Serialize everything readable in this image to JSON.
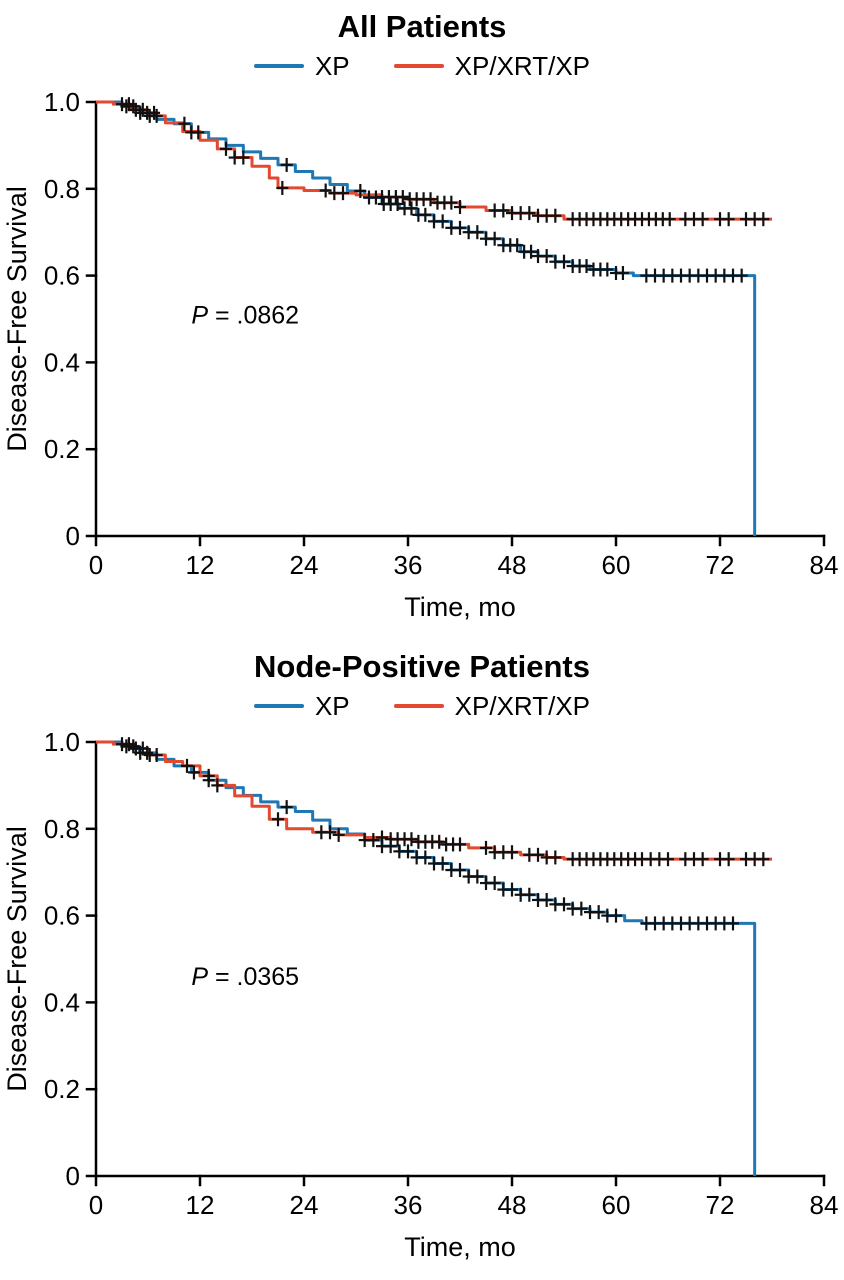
{
  "charts": [
    {
      "title": "All Patients",
      "xlabel": "Time, mo",
      "ylabel": "Disease-Free Survival",
      "type": "line",
      "subtype": "kaplan-meier-step",
      "xlim": [
        0,
        84
      ],
      "ylim": [
        0,
        1.0
      ],
      "xticks": [
        0,
        12,
        24,
        36,
        48,
        60,
        72,
        84
      ],
      "xticklabels": [
        "0",
        "12",
        "24",
        "36",
        "48",
        "60",
        "72",
        "84"
      ],
      "yticks": [
        0,
        0.2,
        0.4,
        0.6,
        0.8,
        1.0
      ],
      "yticklabels": [
        "0",
        "0.2",
        "0.4",
        "0.6",
        "0.8",
        "1.0"
      ],
      "grid": false,
      "legend_position": "top-center",
      "p_stat": "P",
      "p_rest": " = .0862",
      "p_pos": [
        11,
        0.49
      ],
      "censor_color": "#111111",
      "series": [
        {
          "name": "XP",
          "color": "#1f77b4",
          "points": [
            [
              0,
              1.0
            ],
            [
              3,
              0.99
            ],
            [
              5,
              0.975
            ],
            [
              7,
              0.96
            ],
            [
              9,
              0.95
            ],
            [
              11,
              0.93
            ],
            [
              13,
              0.915
            ],
            [
              15,
              0.9
            ],
            [
              17,
              0.885
            ],
            [
              19,
              0.87
            ],
            [
              21,
              0.855
            ],
            [
              23,
              0.84
            ],
            [
              25,
              0.825
            ],
            [
              27,
              0.81
            ],
            [
              29,
              0.795
            ],
            [
              31,
              0.78
            ],
            [
              33,
              0.765
            ],
            [
              35,
              0.755
            ],
            [
              37,
              0.74
            ],
            [
              39,
              0.725
            ],
            [
              41,
              0.71
            ],
            [
              43,
              0.7
            ],
            [
              45,
              0.685
            ],
            [
              47,
              0.67
            ],
            [
              49,
              0.655
            ],
            [
              51,
              0.645
            ],
            [
              53,
              0.632
            ],
            [
              55,
              0.622
            ],
            [
              57,
              0.614
            ],
            [
              60,
              0.606
            ],
            [
              62,
              0.6
            ],
            [
              76,
              0.6
            ],
            [
              76,
              0
            ]
          ],
          "censors": [
            3.5,
            4.3,
            5.1,
            5.9,
            6.7,
            10.2,
            11,
            11.8,
            22,
            30.5,
            31.5,
            32.3,
            33.2,
            34,
            34.8,
            35.6,
            36.4,
            37.2,
            38,
            39,
            40,
            41,
            42,
            43,
            44,
            45,
            46,
            47,
            47.8,
            48.6,
            49.4,
            50.2,
            51,
            52,
            53,
            54,
            55,
            55.8,
            56.6,
            57.4,
            58.2,
            59,
            60,
            60.8,
            63.5,
            64.5,
            65.5,
            66.5,
            67.5,
            68.5,
            69.5,
            70.5,
            71.5,
            72.5,
            73.5,
            74.5
          ]
        },
        {
          "name": "XP/XRT/XP",
          "color": "#e2492f",
          "points": [
            [
              0,
              1.0
            ],
            [
              2,
              0.995
            ],
            [
              4,
              0.982
            ],
            [
              6,
              0.968
            ],
            [
              8,
              0.952
            ],
            [
              10,
              0.932
            ],
            [
              12,
              0.912
            ],
            [
              14,
              0.892
            ],
            [
              16,
              0.872
            ],
            [
              18,
              0.852
            ],
            [
              20,
              0.825
            ],
            [
              21,
              0.802
            ],
            [
              24,
              0.796
            ],
            [
              27,
              0.79
            ],
            [
              30,
              0.786
            ],
            [
              33,
              0.781
            ],
            [
              36,
              0.776
            ],
            [
              39,
              0.768
            ],
            [
              42,
              0.758
            ],
            [
              45,
              0.75
            ],
            [
              48,
              0.744
            ],
            [
              51,
              0.738
            ],
            [
              54,
              0.73
            ],
            [
              78,
              0.73
            ]
          ],
          "censors": [
            3,
            3.8,
            4.6,
            5.4,
            6.2,
            7,
            15,
            16,
            17,
            21.5,
            26.5,
            27.5,
            28.5,
            33,
            33.8,
            34.6,
            35.4,
            36.2,
            37,
            37.8,
            38.6,
            39.4,
            40.2,
            41,
            42,
            46,
            47,
            48,
            49,
            50,
            51,
            52,
            53,
            55,
            55.8,
            56.6,
            57.4,
            58.2,
            59,
            59.8,
            60.6,
            61.4,
            62.2,
            63,
            63.8,
            64.6,
            65.4,
            66.2,
            68,
            69,
            70,
            72,
            73,
            75,
            76,
            77
          ]
        }
      ]
    },
    {
      "title": "Node-Positive Patients",
      "xlabel": "Time, mo",
      "ylabel": "Disease-Free Survival",
      "type": "line",
      "subtype": "kaplan-meier-step",
      "xlim": [
        0,
        84
      ],
      "ylim": [
        0,
        1.0
      ],
      "xticks": [
        0,
        12,
        24,
        36,
        48,
        60,
        72,
        84
      ],
      "xticklabels": [
        "0",
        "12",
        "24",
        "36",
        "48",
        "60",
        "72",
        "84"
      ],
      "yticks": [
        0,
        0.2,
        0.4,
        0.6,
        0.8,
        1.0
      ],
      "yticklabels": [
        "0",
        "0.2",
        "0.4",
        "0.6",
        "0.8",
        "1.0"
      ],
      "grid": false,
      "legend_position": "top-center",
      "p_stat": "P",
      "p_rest": " = .0365",
      "p_pos": [
        11,
        0.44
      ],
      "censor_color": "#111111",
      "series": [
        {
          "name": "XP",
          "color": "#1f77b4",
          "points": [
            [
              0,
              1.0
            ],
            [
              3,
              0.99
            ],
            [
              5,
              0.975
            ],
            [
              7,
              0.96
            ],
            [
              9,
              0.945
            ],
            [
              11,
              0.93
            ],
            [
              13,
              0.912
            ],
            [
              15,
              0.895
            ],
            [
              17,
              0.877
            ],
            [
              19,
              0.862
            ],
            [
              21,
              0.85
            ],
            [
              23,
              0.84
            ],
            [
              25,
              0.82
            ],
            [
              27,
              0.8
            ],
            [
              29,
              0.788
            ],
            [
              31,
              0.774
            ],
            [
              33,
              0.76
            ],
            [
              35,
              0.748
            ],
            [
              37,
              0.734
            ],
            [
              39,
              0.72
            ],
            [
              41,
              0.705
            ],
            [
              43,
              0.69
            ],
            [
              45,
              0.675
            ],
            [
              47,
              0.66
            ],
            [
              49,
              0.648
            ],
            [
              51,
              0.636
            ],
            [
              53,
              0.626
            ],
            [
              55,
              0.616
            ],
            [
              57,
              0.608
            ],
            [
              59,
              0.6
            ],
            [
              61,
              0.588
            ],
            [
              63,
              0.582
            ],
            [
              76,
              0.582
            ],
            [
              76,
              0
            ]
          ],
          "censors": [
            3.5,
            4.3,
            5.1,
            5.9,
            10.5,
            11.3,
            13,
            22,
            31,
            32,
            33,
            34,
            35,
            36,
            37,
            38,
            39,
            40,
            41,
            42,
            43,
            44,
            45,
            46,
            47,
            48,
            49,
            50,
            51,
            52,
            53,
            54,
            55,
            56,
            57,
            58,
            59,
            60,
            63.5,
            64.5,
            65.5,
            66.5,
            67.5,
            68.5,
            69.5,
            70.5,
            71.5,
            72.5,
            73.5
          ]
        },
        {
          "name": "XP/XRT/XP",
          "color": "#e2492f",
          "points": [
            [
              0,
              1.0
            ],
            [
              2,
              0.995
            ],
            [
              4,
              0.985
            ],
            [
              6,
              0.97
            ],
            [
              8,
              0.955
            ],
            [
              10,
              0.945
            ],
            [
              12,
              0.922
            ],
            [
              14,
              0.9
            ],
            [
              16,
              0.876
            ],
            [
              18,
              0.852
            ],
            [
              20,
              0.822
            ],
            [
              22,
              0.8
            ],
            [
              25,
              0.792
            ],
            [
              28,
              0.786
            ],
            [
              31,
              0.78
            ],
            [
              34,
              0.776
            ],
            [
              37,
              0.77
            ],
            [
              40,
              0.764
            ],
            [
              43,
              0.756
            ],
            [
              46,
              0.746
            ],
            [
              49,
              0.74
            ],
            [
              52,
              0.734
            ],
            [
              54,
              0.73
            ],
            [
              78,
              0.73
            ]
          ],
          "censors": [
            3,
            3.8,
            4.6,
            5.4,
            6.2,
            7,
            13,
            14,
            21,
            26,
            27,
            28,
            33,
            34,
            34.8,
            35.6,
            36.4,
            37.2,
            38,
            38.8,
            39.6,
            40.4,
            41.2,
            42,
            45,
            46,
            47,
            48,
            50,
            51,
            52,
            53,
            55,
            55.8,
            56.6,
            57.4,
            58.2,
            59,
            59.8,
            60.6,
            61.4,
            62.2,
            63,
            64,
            65,
            66,
            68,
            69,
            70,
            72,
            73,
            75,
            76,
            77
          ]
        }
      ]
    }
  ]
}
